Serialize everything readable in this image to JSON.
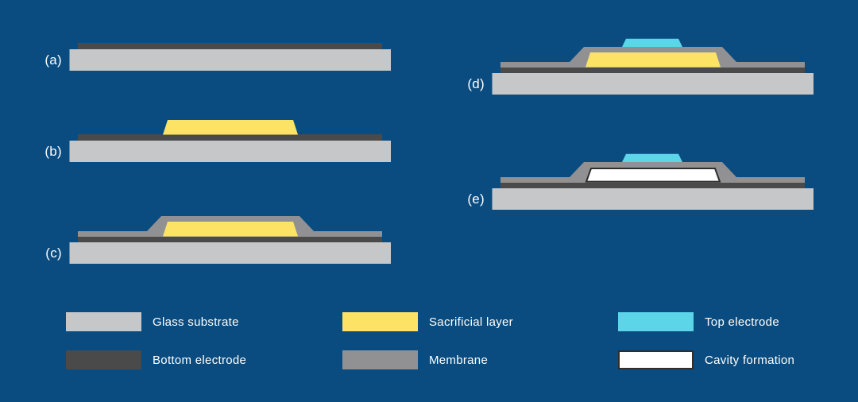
{
  "figure": {
    "background_color": "#0a4c7f",
    "steps": [
      {
        "label": "(a)",
        "layers": [
          "substrate",
          "bottom_electrode"
        ]
      },
      {
        "label": "(b)",
        "layers": [
          "substrate",
          "bottom_electrode",
          "sacrificial"
        ]
      },
      {
        "label": "(c)",
        "layers": [
          "substrate",
          "bottom_electrode",
          "membrane",
          "sacrificial"
        ]
      },
      {
        "label": "(d)",
        "layers": [
          "substrate",
          "bottom_electrode",
          "membrane",
          "sacrificial",
          "top_electrode"
        ]
      },
      {
        "label": "(e)",
        "layers": [
          "substrate",
          "bottom_electrode",
          "membrane",
          "cavity",
          "top_electrode"
        ]
      }
    ],
    "legend": [
      {
        "key": "glass_substrate",
        "label": "Glass substrate",
        "color": "#c6c7c9"
      },
      {
        "key": "bottom_electrode",
        "label": "Bottom electrode",
        "color": "#4a4a4a"
      },
      {
        "key": "sacrificial_layer",
        "label": "Sacrificial layer",
        "color": "#fce366"
      },
      {
        "key": "membrane",
        "label": "Membrane",
        "color": "#919193"
      },
      {
        "key": "top_electrode",
        "label": "Top electrode",
        "color": "#5cd5e9"
      },
      {
        "key": "cavity_formation",
        "label": "Cavity formation",
        "color": "#ffffff",
        "border_color": "#2e2e2e"
      }
    ]
  }
}
